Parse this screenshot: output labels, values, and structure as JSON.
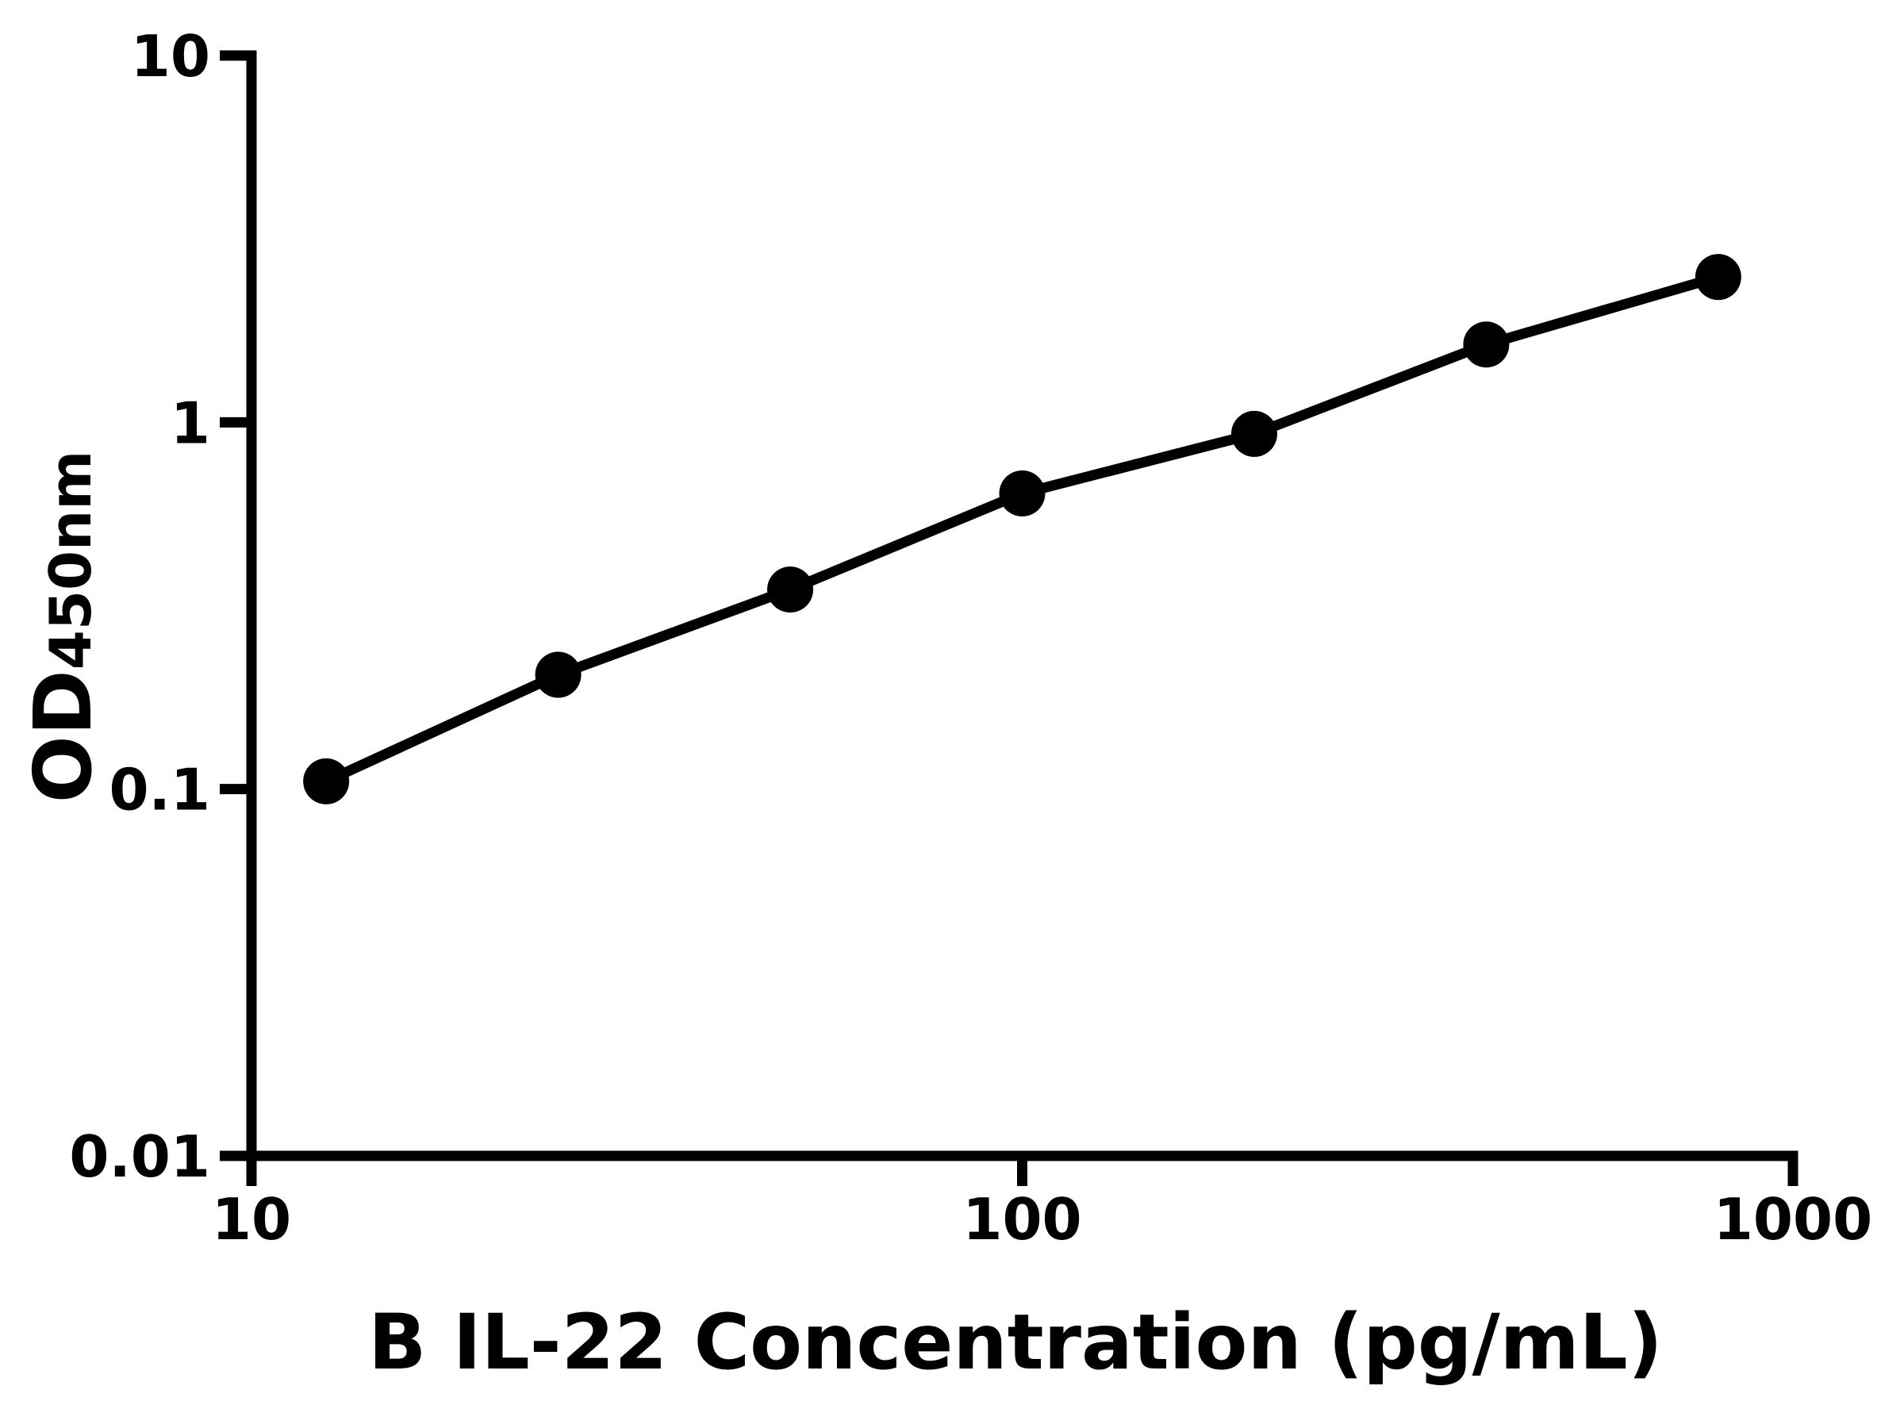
{
  "chart_data": {
    "type": "scatter",
    "connected": true,
    "title": "",
    "xlabel": "B IL-22 Concentration (pg/mL)",
    "ylabel": "OD450nm",
    "ylabel_parts": {
      "main": "OD",
      "sub": "450nm"
    },
    "x_scale": "log",
    "y_scale": "log",
    "xlim": [
      10,
      1000
    ],
    "ylim": [
      0.01,
      10
    ],
    "grid": false,
    "legend_position": "none",
    "foreground_color": "#000000",
    "background_color": "#ffffff",
    "x_ticks": [
      {
        "value": 10,
        "label": "10"
      },
      {
        "value": 100,
        "label": "100"
      },
      {
        "value": 1000,
        "label": "1000"
      }
    ],
    "y_ticks": [
      {
        "value": 10,
        "label": "10"
      },
      {
        "value": 1,
        "label": "1"
      },
      {
        "value": 0.1,
        "label": "0.1"
      },
      {
        "value": 0.01,
        "label": "0.01"
      }
    ],
    "series": [
      {
        "marker": "filled-circle",
        "color": "#000000",
        "x": [
          12.5,
          25,
          50,
          100,
          200,
          400,
          800
        ],
        "y": [
          0.105,
          0.205,
          0.35,
          0.64,
          0.93,
          1.63,
          2.49
        ]
      }
    ]
  }
}
